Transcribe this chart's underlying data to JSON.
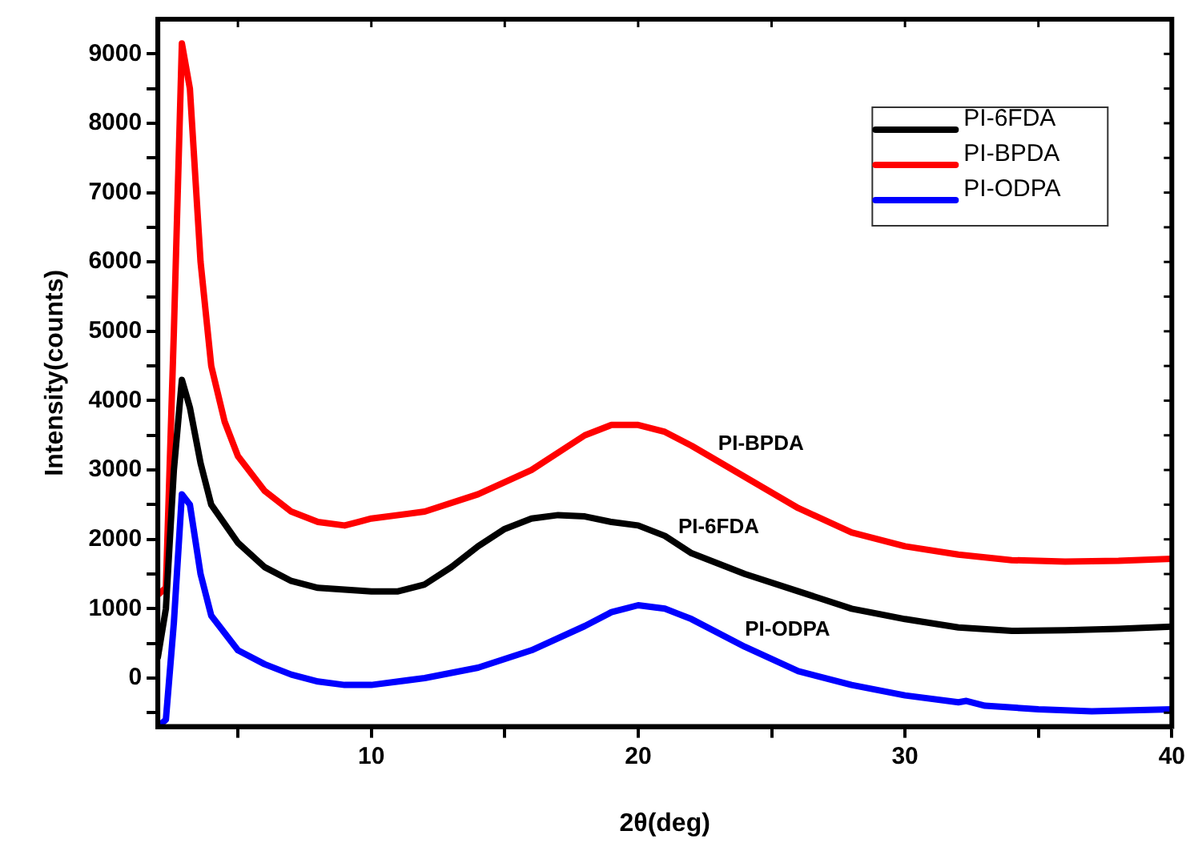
{
  "chart_data": {
    "type": "line",
    "xlabel": "2θ(deg)",
    "ylabel": "Intensity(counts)",
    "xlim": [
      2,
      40
    ],
    "ylim": [
      -700,
      9500
    ],
    "xticks": [
      {
        "value": 5,
        "label": null
      },
      10,
      {
        "value": 15,
        "label": null
      },
      20,
      {
        "value": 25,
        "label": null
      },
      30,
      {
        "value": 35,
        "label": null
      },
      40
    ],
    "yticks": [
      {
        "value": -500,
        "label": null
      },
      0,
      {
        "value": 500,
        "label": null
      },
      1000,
      {
        "value": 1500,
        "label": null
      },
      2000,
      {
        "value": 2500,
        "label": null
      },
      3000,
      {
        "value": 3500,
        "label": null
      },
      4000,
      {
        "value": 4500,
        "label": null
      },
      5000,
      {
        "value": 5500,
        "label": null
      },
      6000,
      {
        "value": 6500,
        "label": null
      },
      7000,
      {
        "value": 7500,
        "label": null
      },
      8000,
      {
        "value": 8500,
        "label": null
      },
      9000
    ],
    "grid": false,
    "legend": "top right",
    "marker": "none",
    "line_style": "solid",
    "annotations": [
      {
        "text": "PI-BPDA",
        "x": 23,
        "y": 3125
      },
      {
        "text": "PI-6FDA",
        "x": 21.5,
        "y": 1925
      },
      {
        "text": "PI-ODPA",
        "x": 24,
        "y": 450
      }
    ],
    "series": [
      {
        "name": "PI-6FDA",
        "color": "#000000",
        "x": [
          2,
          2.3,
          2.6,
          2.9,
          3.2,
          3.6,
          4,
          5,
          6,
          7,
          8,
          10,
          11,
          12,
          13,
          14,
          15,
          16,
          17,
          18,
          19,
          20,
          21,
          22,
          24,
          26,
          28,
          30,
          32,
          34,
          36,
          38,
          40
        ],
        "values": [
          300,
          1000,
          3000,
          4300,
          3900,
          3100,
          2500,
          1950,
          1600,
          1400,
          1300,
          1250,
          1250,
          1350,
          1600,
          1900,
          2150,
          2300,
          2350,
          2330,
          2250,
          2200,
          2050,
          1800,
          1500,
          1250,
          1000,
          850,
          730,
          680,
          690,
          710,
          740
        ]
      },
      {
        "name": "PI-BPDA",
        "color": "#ff0000",
        "x": [
          2,
          2.3,
          2.6,
          2.9,
          3.2,
          3.6,
          4,
          4.5,
          5,
          6,
          7,
          8,
          9,
          9.5,
          10,
          12,
          14,
          16,
          18,
          19,
          20,
          21,
          22,
          24,
          26,
          28,
          30,
          32,
          34,
          36,
          38,
          40
        ],
        "values": [
          1200,
          1300,
          5000,
          9150,
          8500,
          6000,
          4500,
          3700,
          3200,
          2700,
          2400,
          2250,
          2200,
          2250,
          2300,
          2400,
          2650,
          3000,
          3500,
          3650,
          3650,
          3550,
          3350,
          2900,
          2450,
          2100,
          1900,
          1780,
          1700,
          1680,
          1690,
          1720
        ]
      },
      {
        "name": "PI-ODPA",
        "color": "#0000ff",
        "x": [
          2,
          2.3,
          2.6,
          2.9,
          3.2,
          3.6,
          4,
          5,
          6,
          7,
          8,
          9,
          10,
          12,
          14,
          16,
          18,
          19,
          20,
          21,
          22,
          24,
          26,
          28,
          30,
          32,
          32.3,
          33,
          35,
          37,
          40
        ],
        "values": [
          -700,
          -600,
          800,
          2650,
          2500,
          1500,
          900,
          400,
          200,
          50,
          -50,
          -100,
          -100,
          0,
          150,
          400,
          750,
          950,
          1050,
          1000,
          850,
          450,
          100,
          -100,
          -250,
          -350,
          -330,
          -400,
          -450,
          -480,
          -450
        ]
      }
    ]
  }
}
